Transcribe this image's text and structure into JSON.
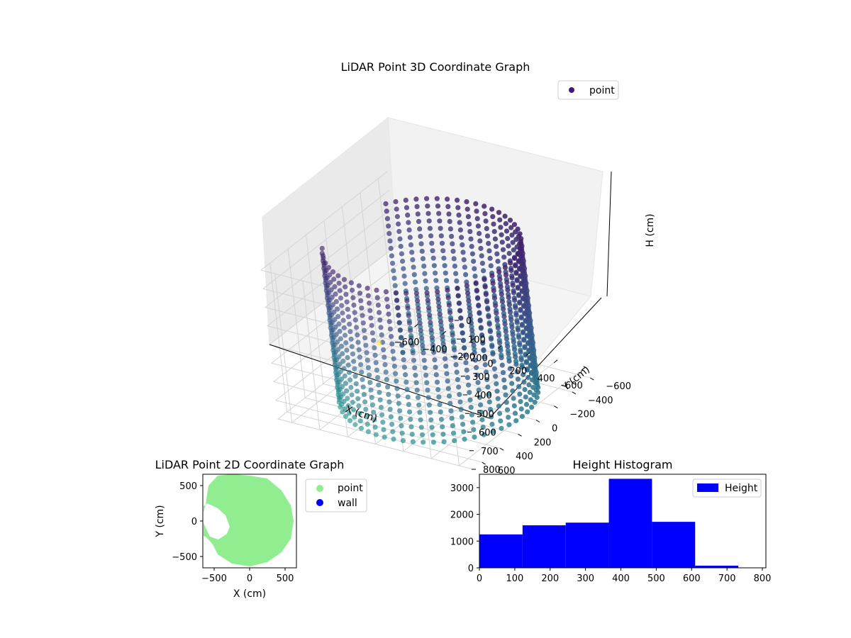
{
  "chart_data": [
    {
      "type": "scatter3d",
      "title": "LiDAR Point 3D Coordinate Graph",
      "xlabel": "X (cm)",
      "ylabel": "Y (cm)",
      "zlabel": "H (cm)",
      "xlim": [
        -700,
        700
      ],
      "ylim": [
        -700,
        700
      ],
      "zlim": [
        800,
        0
      ],
      "xticks": [
        -600,
        -400,
        -200,
        0,
        200,
        400,
        600
      ],
      "yticks": [
        -600,
        -400,
        -200,
        0,
        200,
        400,
        600
      ],
      "zticks": [
        0,
        100,
        200,
        300,
        400,
        500,
        600,
        700,
        800
      ],
      "xtick_labels": [
        "−600",
        "−400",
        "−200",
        "0",
        "200",
        "400",
        "600"
      ],
      "ytick_labels": [
        "−600",
        "−400",
        "−200",
        "0",
        "200",
        "400",
        "600"
      ],
      "ztick_labels": [
        "0",
        "100",
        "200",
        "300",
        "400",
        "500",
        "600",
        "700",
        "800"
      ],
      "colormap": "viridis",
      "grid": true,
      "legend": {
        "position": "top-right",
        "entries": [
          "point"
        ]
      },
      "series": [
        {
          "name": "point",
          "color": "#440154",
          "shape": "ring wall of radius ~600 cm with an opening on the -X side",
          "wall_radius": 600,
          "opening_angle_range_deg": [
            150,
            215
          ],
          "height_range": [
            0,
            800
          ]
        }
      ],
      "outliers": [
        {
          "x": -650,
          "y": -350,
          "h": 780
        }
      ]
    },
    {
      "type": "scatter",
      "title": "LiDAR Point 2D Coordinate Graph",
      "xlabel": "X (cm)",
      "ylabel": "Y (cm)",
      "xlim": [
        -660,
        660
      ],
      "ylim": [
        -660,
        660
      ],
      "xticks": [
        -500,
        0,
        500
      ],
      "yticks": [
        -500,
        0,
        500
      ],
      "xtick_labels": [
        "−500",
        "0",
        "500"
      ],
      "ytick_labels": [
        "−500",
        "0",
        "500"
      ],
      "legend": {
        "position": "outside-right",
        "entries": [
          {
            "label": "point",
            "color": "#90ee90"
          },
          {
            "label": "wall",
            "color": "#0000ff"
          }
        ]
      },
      "series": [
        {
          "name": "point",
          "color": "#90ee90",
          "outline": [
            [
              0,
              640
            ],
            [
              250,
              600
            ],
            [
              450,
              430
            ],
            [
              580,
              220
            ],
            [
              620,
              0
            ],
            [
              580,
              -250
            ],
            [
              450,
              -440
            ],
            [
              250,
              -580
            ],
            [
              0,
              -640
            ],
            [
              -250,
              -600
            ],
            [
              -450,
              -470
            ],
            [
              -520,
              -330
            ],
            [
              -610,
              -230
            ],
            [
              -650,
              -210
            ],
            [
              -650,
              120
            ],
            [
              -620,
              240
            ],
            [
              -580,
              500
            ],
            [
              -450,
              640
            ],
            [
              -250,
              660
            ]
          ],
          "hole": [
            [
              -650,
              210
            ],
            [
              -600,
              250
            ],
            [
              -450,
              180
            ],
            [
              -340,
              80
            ],
            [
              -280,
              -80
            ],
            [
              -320,
              -180
            ],
            [
              -440,
              -260
            ],
            [
              -560,
              -220
            ],
            [
              -650,
              -30
            ]
          ]
        },
        {
          "name": "wall",
          "color": "#0000ff",
          "points": []
        }
      ]
    },
    {
      "type": "histogram",
      "title": "Height Histogram",
      "xlabel": "",
      "ylabel": "",
      "xlim": [
        0,
        810
      ],
      "ylim": [
        0,
        3500
      ],
      "xticks": [
        0,
        100,
        200,
        300,
        400,
        500,
        600,
        700,
        800
      ],
      "yticks": [
        0,
        1000,
        2000,
        3000
      ],
      "legend": {
        "position": "top-right",
        "entries": [
          "Height"
        ]
      },
      "series": [
        {
          "name": "Height",
          "color": "#0000ff",
          "bin_edges": [
            0,
            122,
            244,
            366,
            488,
            610,
            732
          ],
          "counts": [
            1250,
            1590,
            1690,
            3330,
            1720,
            80
          ]
        }
      ]
    }
  ]
}
